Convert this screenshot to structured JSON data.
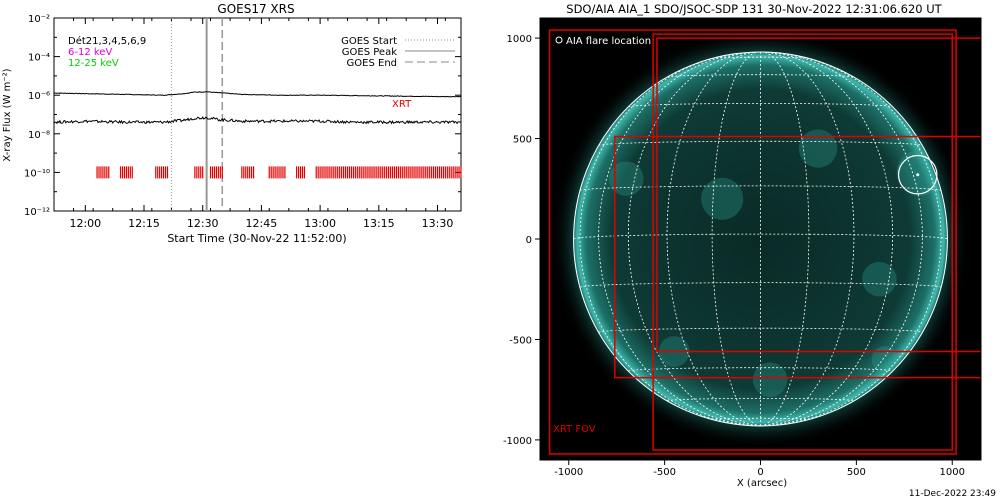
{
  "footer_timestamp": "11-Dec-2022 23:49",
  "colors": {
    "xrt_red": "#e00000",
    "sun_cyan": "#1f8f86",
    "legend_magenta": "#e000e0",
    "legend_green": "#00d000"
  },
  "chart_data": [
    {
      "type": "line",
      "title": "GOES17 XRS",
      "xlabel": "Start Time (30-Nov-22 11:52:00)",
      "ylabel": "X-ray Flux (W m⁻²)",
      "y_scale": "log",
      "xlim": [
        "11:52",
        "13:36"
      ],
      "ylim": [
        1e-12,
        0.01
      ],
      "x_ticks": [
        "12:00",
        "12:15",
        "12:30",
        "12:45",
        "13:00",
        "13:15",
        "13:30"
      ],
      "y_ticks": [
        "10⁻¹²",
        "10⁻¹⁰",
        "10⁻⁸",
        "10⁻⁶",
        "10⁻⁴",
        "10⁻²"
      ],
      "y_tick_values": [
        1e-12,
        1e-10,
        1e-08,
        1e-06,
        0.0001,
        0.01
      ],
      "detector_label": "Dét21,3,4,5,6,9",
      "series": [
        {
          "name": "6-12 keV",
          "color": "#000000",
          "x": [
            "11:52",
            "12:00",
            "12:10",
            "12:20",
            "12:25",
            "12:28",
            "12:31",
            "12:34",
            "12:40",
            "12:50",
            "13:00",
            "13:10",
            "13:20",
            "13:30",
            "13:36"
          ],
          "values": [
            1.3e-06,
            1.2e-06,
            1.1e-06,
            1e-06,
            1.2e-06,
            1.45e-06,
            1.5e-06,
            1.35e-06,
            1.1e-06,
            1e-06,
            1e-06,
            9.5e-07,
            9e-07,
            8.5e-07,
            8.5e-07
          ]
        },
        {
          "name": "12-25 keV",
          "color": "#000000",
          "x": [
            "11:52",
            "12:00",
            "12:10",
            "12:20",
            "12:25",
            "12:28",
            "12:31",
            "12:34",
            "12:40",
            "12:50",
            "13:00",
            "13:10",
            "13:20",
            "13:30",
            "13:36"
          ],
          "values": [
            4e-08,
            4.5e-08,
            4e-08,
            4e-08,
            5e-08,
            6.5e-08,
            7e-08,
            5.5e-08,
            4.5e-08,
            4.5e-08,
            4.5e-08,
            4e-08,
            4e-08,
            4e-08,
            4e-08
          ]
        }
      ],
      "legend": [
        {
          "label": "GOES Start",
          "style": "dotted"
        },
        {
          "label": "GOES Peak",
          "style": "solid"
        },
        {
          "label": "GOES End",
          "style": "dashed"
        }
      ],
      "legend_placement": "top-right",
      "events": {
        "goes_start": "12:22",
        "goes_peak": "12:31",
        "goes_end": "12:35"
      },
      "xrt_label": "XRT",
      "xrt_level": 1e-10,
      "xrt_intervals": [
        [
          "12:03",
          "12:06"
        ],
        [
          "12:09",
          "12:12"
        ],
        [
          "12:18",
          "12:21"
        ],
        [
          "12:28",
          "12:30"
        ],
        [
          "12:32",
          "12:35"
        ],
        [
          "12:40",
          "12:43"
        ],
        [
          "12:47",
          "12:51"
        ],
        [
          "12:54",
          "12:56"
        ],
        [
          "12:59",
          "13:36"
        ]
      ]
    },
    {
      "type": "image",
      "title": "SDO/AIA AIA_1 SDO/JSOC-SDP 131 30-Nov-2022 12:31:06.620 UT",
      "xlabel": "X (arcsec)",
      "ylabel": "",
      "xlim": [
        -1150,
        1150
      ],
      "ylim": [
        -1100,
        1100
      ],
      "x_ticks": [
        -1000,
        -500,
        0,
        500,
        1000
      ],
      "y_ticks": [
        -1000,
        -500,
        0,
        500,
        1000
      ],
      "solar_radius_arcsec": 975,
      "legend_label": "AIA flare location",
      "flare_location": {
        "x": 820,
        "y": 320,
        "radius": 100
      },
      "fov_label": "XRT FOV",
      "xrt_fov_boxes": [
        {
          "x1": -1100,
          "y1": -1070,
          "x2": 1020,
          "y2": 1040
        },
        {
          "x1": -560,
          "y1": -1050,
          "x2": 1000,
          "y2": 1020
        },
        {
          "x1": -760,
          "y1": -690,
          "x2": 1180,
          "y2": 510
        },
        {
          "x1": -540,
          "y1": -560,
          "x2": 1180,
          "y2": 1000
        }
      ]
    }
  ]
}
